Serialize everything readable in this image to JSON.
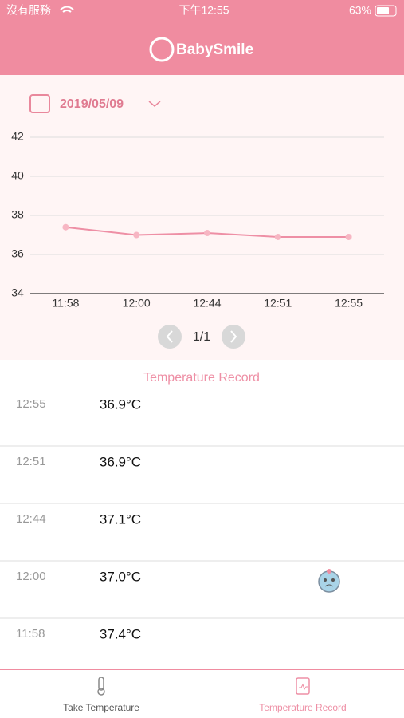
{
  "status_bar": {
    "carrier": "沒有服務",
    "time": "下午12:55",
    "battery": "63%"
  },
  "header": {
    "logo": "BabySmile"
  },
  "date_selector": {
    "date": "2019/05/09"
  },
  "chart_data": {
    "type": "line",
    "categories": [
      "11:58",
      "12:00",
      "12:44",
      "12:51",
      "12:55"
    ],
    "series": [
      {
        "color": "#ee8fa5",
        "values": [
          37.4,
          37.0,
          37.1,
          36.9,
          36.9
        ]
      }
    ],
    "ylim": [
      34,
      42
    ],
    "yticks": [
      34,
      36,
      38,
      40,
      42
    ],
    "grid": true
  },
  "pagination": {
    "label": "1/1"
  },
  "record_list": {
    "title": "Temperature Record",
    "rows": [
      {
        "time": "12:55",
        "temperature": "36.9°C"
      },
      {
        "time": "12:51",
        "temperature": "36.9°C"
      },
      {
        "time": "12:44",
        "temperature": "37.1°C"
      },
      {
        "time": "12:00",
        "temperature": "37.0°C"
      },
      {
        "time": "11:58",
        "temperature": "37.4°C"
      }
    ]
  },
  "tab_bar": {
    "tabs": [
      {
        "label": "Take Temperature"
      },
      {
        "label": "Temperature Record"
      }
    ]
  }
}
